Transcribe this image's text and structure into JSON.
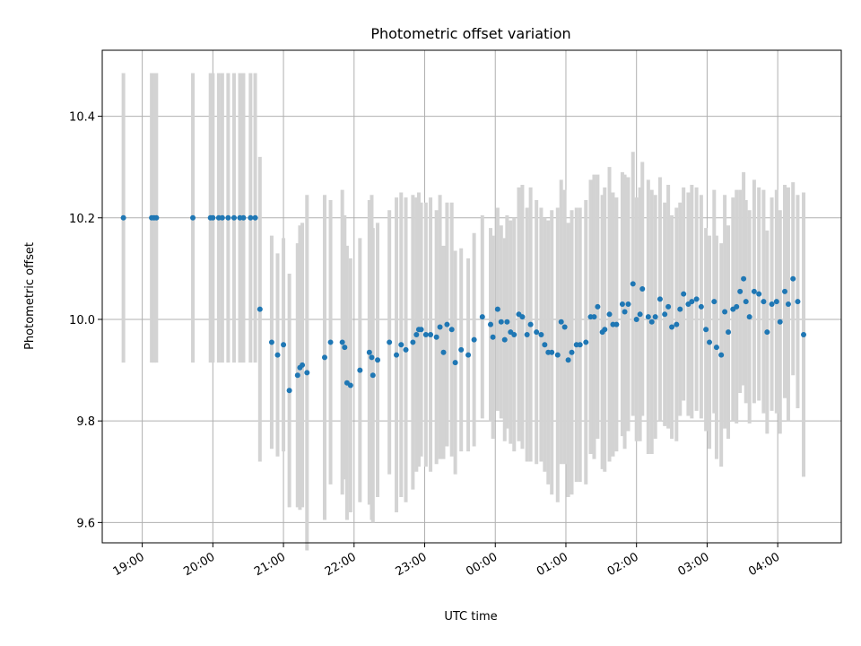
{
  "chart_data": {
    "type": "scatter",
    "title": "Photometric offset variation",
    "xlabel": "UTC time",
    "ylabel": "Photometric offset",
    "x_tick_labels": [
      "19:00",
      "20:00",
      "21:00",
      "22:00",
      "23:00",
      "00:00",
      "01:00",
      "02:00",
      "03:00",
      "04:00"
    ],
    "y_tick_labels": [
      "9.6",
      "9.8",
      "10.0",
      "10.2",
      "10.4"
    ],
    "y_ticks": [
      9.6,
      9.8,
      10.0,
      10.2,
      10.4
    ],
    "ylim": [
      9.56,
      10.53
    ],
    "xlim": [
      "18:26",
      "04:54"
    ],
    "grid": true,
    "colors": {
      "point": "#1f77b4",
      "errorbar": "#d3d3d3",
      "grid": "#b0b0b0"
    },
    "series": [
      {
        "x": [
          "18:44",
          "19:08",
          "19:10",
          "19:12",
          "19:43",
          "19:58",
          "20:00",
          "20:05",
          "20:08",
          "20:13",
          "20:18",
          "20:23",
          "20:26",
          "20:32",
          "20:36"
        ],
        "y": [
          10.2,
          10.2,
          10.2,
          10.2,
          10.2,
          10.2,
          10.2,
          10.2,
          10.2,
          10.2,
          10.2,
          10.2,
          10.2,
          10.2,
          10.2
        ],
        "err": [
          0.285,
          0.285,
          0.285,
          0.285,
          0.285,
          0.285,
          0.285,
          0.285,
          0.285,
          0.285,
          0.285,
          0.285,
          0.285,
          0.285,
          0.285
        ]
      },
      {
        "x": [
          "20:40",
          "20:50",
          "20:55",
          "21:00",
          "21:05",
          "21:12",
          "21:14",
          "21:16",
          "21:20",
          "21:35",
          "21:40",
          "21:50",
          "21:52",
          "21:54",
          "21:57",
          "22:05",
          "22:13",
          "22:15",
          "22:16",
          "22:20",
          "22:30",
          "22:36",
          "22:40",
          "22:44",
          "22:50",
          "22:53",
          "22:55",
          "22:57",
          "23:01",
          "23:05",
          "23:10",
          "23:13",
          "23:16",
          "23:19",
          "23:23",
          "23:26",
          "23:31",
          "23:37",
          "23:42",
          "23:49",
          "23:56",
          "23:58",
          "00:02",
          "00:05",
          "00:08",
          "00:10",
          "00:13",
          "00:16",
          "00:20",
          "00:23",
          "00:27",
          "00:30",
          "00:35",
          "00:39",
          "00:42",
          "00:45",
          "00:48",
          "00:53",
          "00:56",
          "00:59",
          "01:02",
          "01:05",
          "01:09",
          "01:12",
          "01:17",
          "01:21",
          "01:24",
          "01:27",
          "01:31",
          "01:33",
          "01:37",
          "01:40",
          "01:43",
          "01:48",
          "01:50",
          "01:53",
          "01:57",
          "02:00",
          "02:03",
          "02:05",
          "02:10",
          "02:13",
          "02:16",
          "02:20",
          "02:24",
          "02:27",
          "02:30",
          "02:34",
          "02:37",
          "02:40",
          "02:44",
          "02:47",
          "02:51",
          "02:55",
          "02:59",
          "03:02",
          "03:06",
          "03:08",
          "03:12",
          "03:15",
          "03:18",
          "03:22",
          "03:25",
          "03:28",
          "03:31",
          "03:33",
          "03:36",
          "03:40",
          "03:44",
          "03:48",
          "03:51",
          "03:55",
          "03:59",
          "04:02",
          "04:06",
          "04:09",
          "04:13",
          "04:17",
          "04:22"
        ],
        "y": [
          10.02,
          9.955,
          9.93,
          9.95,
          9.86,
          9.89,
          9.905,
          9.91,
          9.895,
          9.925,
          9.955,
          9.955,
          9.945,
          9.875,
          9.87,
          9.9,
          9.935,
          9.925,
          9.89,
          9.92,
          9.955,
          9.93,
          9.95,
          9.94,
          9.955,
          9.97,
          9.98,
          9.98,
          9.97,
          9.97,
          9.965,
          9.985,
          9.935,
          9.99,
          9.98,
          9.915,
          9.94,
          9.93,
          9.96,
          10.005,
          9.99,
          9.965,
          10.02,
          9.995,
          9.96,
          9.995,
          9.975,
          9.97,
          10.01,
          10.005,
          9.97,
          9.99,
          9.975,
          9.97,
          9.95,
          9.935,
          9.935,
          9.93,
          9.995,
          9.985,
          9.92,
          9.935,
          9.95,
          9.95,
          9.955,
          10.005,
          10.005,
          10.025,
          9.975,
          9.98,
          10.01,
          9.99,
          9.99,
          10.03,
          10.015,
          10.03,
          10.07,
          10.0,
          10.01,
          10.06,
          10.005,
          9.995,
          10.005,
          10.04,
          10.01,
          10.025,
          9.985,
          9.99,
          10.02,
          10.05,
          10.03,
          10.035,
          10.04,
          10.025,
          9.98,
          9.955,
          10.035,
          9.945,
          9.93,
          10.015,
          9.975,
          10.02,
          10.025,
          10.055,
          10.08,
          10.035,
          10.005,
          10.055,
          10.05,
          10.035,
          9.975,
          10.03,
          10.035,
          9.995,
          10.055,
          10.03,
          10.08,
          10.035,
          9.97
        ],
        "err": [
          0.3,
          0.21,
          0.2,
          0.21,
          0.23,
          0.26,
          0.28,
          0.28,
          0.35,
          0.32,
          0.28,
          0.3,
          0.26,
          0.27,
          0.25,
          0.26,
          0.3,
          0.32,
          0.29,
          0.27,
          0.26,
          0.31,
          0.3,
          0.3,
          0.29,
          0.27,
          0.27,
          0.25,
          0.26,
          0.27,
          0.25,
          0.26,
          0.21,
          0.24,
          0.25,
          0.22,
          0.2,
          0.19,
          0.21,
          0.2,
          0.19,
          0.2,
          0.2,
          0.19,
          0.2,
          0.21,
          0.22,
          0.23,
          0.25,
          0.26,
          0.25,
          0.27,
          0.26,
          0.25,
          0.25,
          0.26,
          0.28,
          0.29,
          0.28,
          0.27,
          0.27,
          0.28,
          0.27,
          0.27,
          0.28,
          0.27,
          0.28,
          0.26,
          0.27,
          0.28,
          0.29,
          0.26,
          0.25,
          0.26,
          0.27,
          0.25,
          0.26,
          0.24,
          0.25,
          0.25,
          0.27,
          0.26,
          0.24,
          0.24,
          0.22,
          0.24,
          0.22,
          0.23,
          0.21,
          0.21,
          0.22,
          0.23,
          0.22,
          0.22,
          0.2,
          0.21,
          0.22,
          0.22,
          0.22,
          0.23,
          0.21,
          0.22,
          0.23,
          0.2,
          0.21,
          0.2,
          0.21,
          0.22,
          0.21,
          0.22,
          0.2,
          0.21,
          0.22,
          0.22,
          0.21,
          0.23,
          0.19,
          0.21,
          0.28
        ]
      }
    ]
  }
}
